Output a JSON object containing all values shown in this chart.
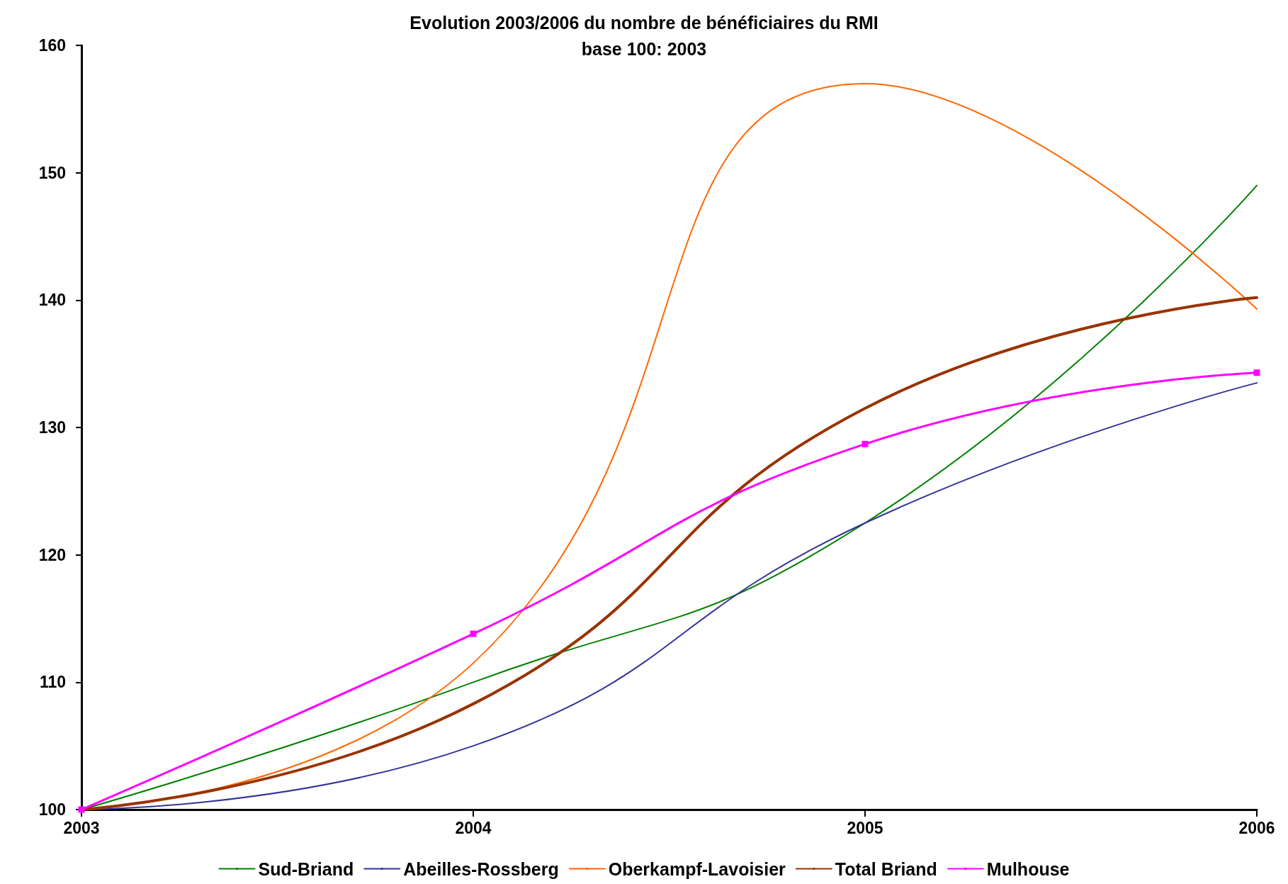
{
  "chart_data": {
    "type": "line",
    "title": "Evolution 2003/2006 du nombre de bénéficiaires du RMI",
    "subtitle": "base 100: 2003",
    "x": [
      2003,
      2004,
      2005,
      2006
    ],
    "xlim": [
      2003,
      2006
    ],
    "xticks": [
      2003,
      2004,
      2005,
      2006
    ],
    "ylim": [
      100,
      160
    ],
    "yticks": [
      100,
      110,
      120,
      130,
      140,
      150,
      160
    ],
    "grid": false,
    "legend": "bottom",
    "marker": "none",
    "line_style": "solid",
    "series": [
      {
        "name": "Sud-Briand",
        "color": "#008000",
        "values": [
          100,
          110,
          122.5,
          149
        ]
      },
      {
        "name": "Abeilles-Rossberg",
        "color": "#333399",
        "values": [
          100,
          105,
          122.5,
          133.5
        ]
      },
      {
        "name": "Oberkampf-Lavoisier",
        "color": "#ff6600",
        "values": [
          100,
          111.5,
          157,
          139.3
        ]
      },
      {
        "name": "Total Briand",
        "color": "#993300",
        "values": [
          100,
          108.3,
          131.5,
          140.2
        ]
      },
      {
        "name": "Mulhouse",
        "color": "#ff00ff",
        "values": [
          100,
          113.8,
          128.7,
          134.3
        ],
        "marker": "square"
      }
    ]
  }
}
